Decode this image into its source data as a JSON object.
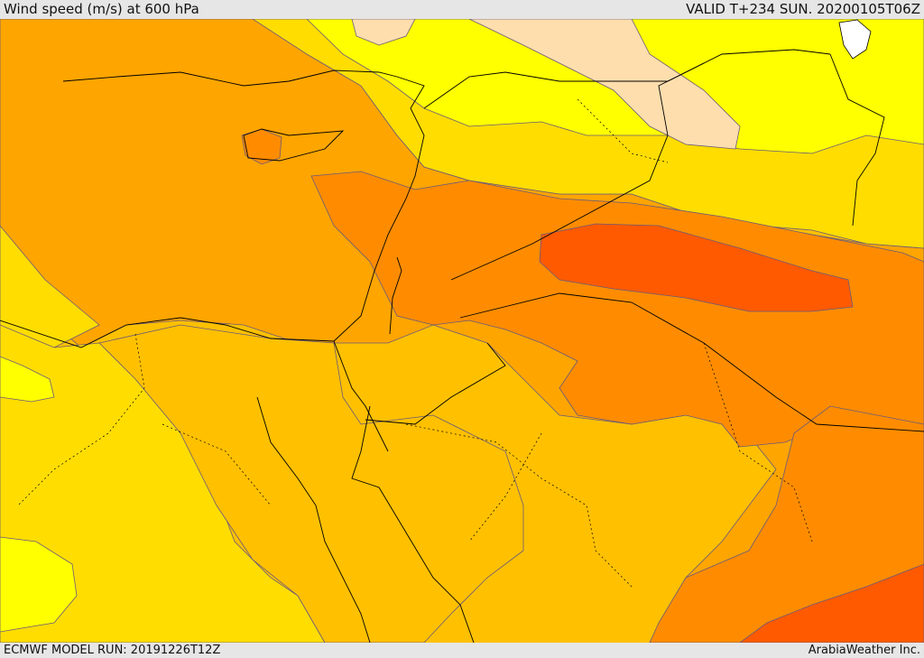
{
  "header": {
    "title": "Wind speed (m/s) at 600 hPa",
    "valid": "VALID T+234 SUN. 20200105T06Z"
  },
  "footer": {
    "model_run": "ECMWF MODEL RUN: 20191226T12Z",
    "credit": "ArabiaWeather Inc."
  },
  "colors": {
    "pale_yellow": "#ffff00",
    "gold": "#ffdd00",
    "amber": "#ffc000",
    "orange_light": "#ffa500",
    "orange": "#ff8c00",
    "orange_dark": "#ff7000",
    "red_orange": "#ff5a00",
    "peach": "#ffdead",
    "white": "#ffffff",
    "border_color": "#000000",
    "contour_color": "#6a5a7a"
  }
}
